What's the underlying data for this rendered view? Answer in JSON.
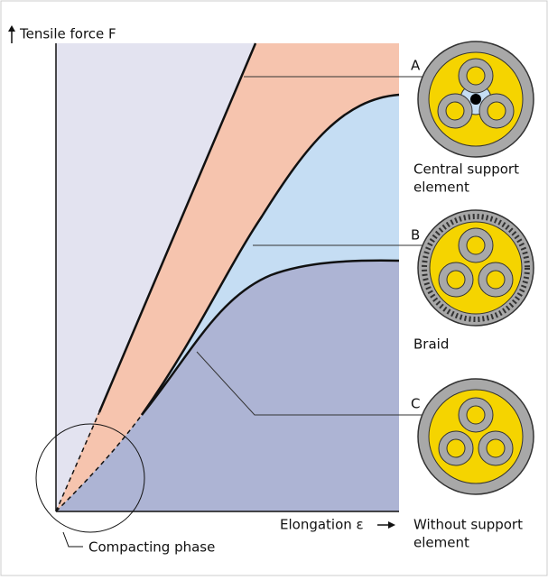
{
  "axes": {
    "y_label": "Tensile force F",
    "x_label": "Elongation ε"
  },
  "curves": [
    {
      "label": "A"
    },
    {
      "label": "B"
    },
    {
      "label": "C"
    }
  ],
  "cables": [
    {
      "lines": [
        "Central support",
        "element"
      ]
    },
    {
      "lines": [
        "Braid"
      ]
    },
    {
      "lines": [
        "Without support",
        "element"
      ]
    }
  ],
  "callout": "Compacting phase"
}
